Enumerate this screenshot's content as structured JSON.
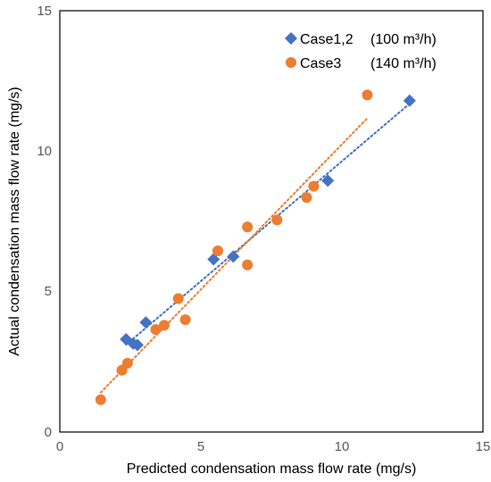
{
  "chart_data": {
    "type": "scatter",
    "title": "",
    "xlabel": "Predicted condensation mass flow rate (mg/s)",
    "ylabel": "Actual condensation mass flow rate (mg/s)",
    "xlim": [
      0,
      15
    ],
    "ylim": [
      0,
      15
    ],
    "xticks": [
      "0",
      "5",
      "10",
      "15"
    ],
    "yticks": [
      "0",
      "5",
      "10",
      "15"
    ],
    "grid": false,
    "legend_position": "top-right",
    "series": [
      {
        "name": "Case1,2",
        "legend_suffix": "(100 m³/h)",
        "marker": "diamond",
        "color": "#4472C4",
        "trendline": true,
        "points": [
          [
            2.35,
            3.3
          ],
          [
            2.6,
            3.15
          ],
          [
            2.75,
            3.1
          ],
          [
            3.05,
            3.9
          ],
          [
            5.45,
            6.15
          ],
          [
            6.15,
            6.25
          ],
          [
            9.5,
            8.95
          ],
          [
            12.4,
            11.8
          ]
        ]
      },
      {
        "name": "Case3",
        "legend_suffix": "(140 m³/h)",
        "marker": "circle",
        "color": "#ED7D31",
        "trendline": true,
        "points": [
          [
            1.45,
            1.15
          ],
          [
            2.2,
            2.2
          ],
          [
            2.4,
            2.45
          ],
          [
            3.4,
            3.65
          ],
          [
            3.7,
            3.8
          ],
          [
            4.2,
            4.75
          ],
          [
            4.45,
            4.0
          ],
          [
            5.6,
            6.45
          ],
          [
            6.65,
            7.3
          ],
          [
            6.65,
            5.95
          ],
          [
            7.7,
            7.55
          ],
          [
            8.75,
            8.35
          ],
          [
            9.0,
            8.75
          ],
          [
            10.9,
            12.0
          ]
        ]
      }
    ]
  }
}
